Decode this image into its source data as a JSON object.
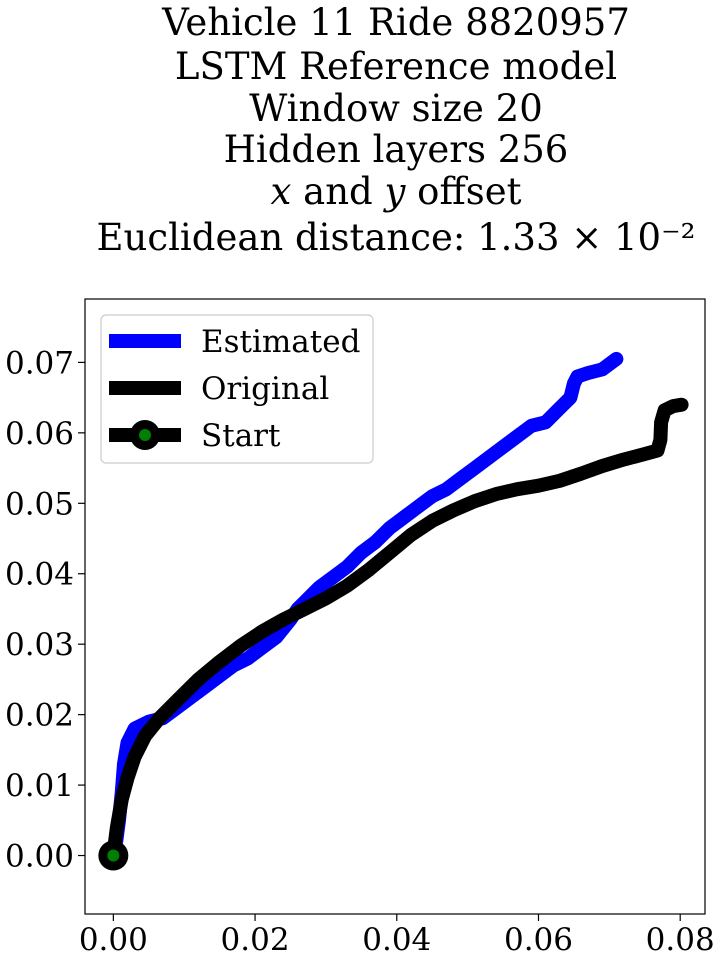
{
  "chart_data": {
    "type": "line",
    "title": [
      "Vehicle 11 Ride 8820957",
      "LSTM Reference model",
      "Window size 20",
      "Hidden layers 256",
      "x and y offset",
      "Euclidean distance: 1.33 × 10⁻²"
    ],
    "xlabel": "",
    "ylabel": "",
    "xlim": [
      -0.004,
      0.0835
    ],
    "ylim": [
      -0.0083,
      0.079
    ],
    "x_ticks": [
      "0.00",
      "0.02",
      "0.04",
      "0.06",
      "0.08"
    ],
    "x_tick_values": [
      0.0,
      0.02,
      0.04,
      0.06,
      0.08
    ],
    "y_ticks": [
      "0.00",
      "0.01",
      "0.02",
      "0.03",
      "0.04",
      "0.05",
      "0.06",
      "0.07"
    ],
    "y_tick_values": [
      0.0,
      0.01,
      0.02,
      0.03,
      0.04,
      0.05,
      0.06,
      0.07
    ],
    "grid": false,
    "legend_position": "top-left",
    "series": [
      {
        "name": "Estimated",
        "color": "#0000ff",
        "points": [
          [
            0.0,
            0.0
          ],
          [
            0.0004,
            0.002
          ],
          [
            0.0008,
            0.005
          ],
          [
            0.0012,
            0.009
          ],
          [
            0.0015,
            0.013
          ],
          [
            0.002,
            0.016
          ],
          [
            0.003,
            0.018
          ],
          [
            0.005,
            0.019
          ],
          [
            0.007,
            0.0195
          ],
          [
            0.009,
            0.021
          ],
          [
            0.011,
            0.0225
          ],
          [
            0.013,
            0.024
          ],
          [
            0.015,
            0.0255
          ],
          [
            0.017,
            0.027
          ],
          [
            0.019,
            0.028
          ],
          [
            0.021,
            0.0295
          ],
          [
            0.023,
            0.031
          ],
          [
            0.025,
            0.0335
          ],
          [
            0.026,
            0.035
          ],
          [
            0.027,
            0.036
          ],
          [
            0.029,
            0.038
          ],
          [
            0.031,
            0.0395
          ],
          [
            0.033,
            0.041
          ],
          [
            0.035,
            0.043
          ],
          [
            0.037,
            0.0445
          ],
          [
            0.039,
            0.0465
          ],
          [
            0.041,
            0.048
          ],
          [
            0.043,
            0.0495
          ],
          [
            0.045,
            0.051
          ],
          [
            0.047,
            0.052
          ],
          [
            0.049,
            0.0535
          ],
          [
            0.051,
            0.055
          ],
          [
            0.053,
            0.0565
          ],
          [
            0.055,
            0.058
          ],
          [
            0.057,
            0.0595
          ],
          [
            0.059,
            0.061
          ],
          [
            0.061,
            0.0615
          ],
          [
            0.063,
            0.0635
          ],
          [
            0.0645,
            0.065
          ],
          [
            0.065,
            0.067
          ],
          [
            0.0655,
            0.068
          ],
          [
            0.067,
            0.0685
          ],
          [
            0.069,
            0.069
          ],
          [
            0.071,
            0.0705
          ]
        ]
      },
      {
        "name": "Original",
        "color": "#000000",
        "points": [
          [
            0.0,
            0.0
          ],
          [
            0.0005,
            0.004
          ],
          [
            0.0012,
            0.008
          ],
          [
            0.002,
            0.011
          ],
          [
            0.003,
            0.014
          ],
          [
            0.0045,
            0.017
          ],
          [
            0.0065,
            0.0195
          ],
          [
            0.009,
            0.022
          ],
          [
            0.012,
            0.025
          ],
          [
            0.015,
            0.0275
          ],
          [
            0.018,
            0.0298
          ],
          [
            0.021,
            0.0318
          ],
          [
            0.024,
            0.0335
          ],
          [
            0.027,
            0.035
          ],
          [
            0.03,
            0.0365
          ],
          [
            0.033,
            0.0383
          ],
          [
            0.036,
            0.0405
          ],
          [
            0.039,
            0.043
          ],
          [
            0.042,
            0.0455
          ],
          [
            0.045,
            0.0475
          ],
          [
            0.048,
            0.049
          ],
          [
            0.051,
            0.0503
          ],
          [
            0.054,
            0.0513
          ],
          [
            0.057,
            0.052
          ],
          [
            0.06,
            0.0525
          ],
          [
            0.063,
            0.0532
          ],
          [
            0.066,
            0.0542
          ],
          [
            0.069,
            0.0553
          ],
          [
            0.072,
            0.0562
          ],
          [
            0.075,
            0.057
          ],
          [
            0.0768,
            0.0575
          ],
          [
            0.0772,
            0.059
          ],
          [
            0.0773,
            0.0615
          ],
          [
            0.0778,
            0.0632
          ],
          [
            0.079,
            0.0638
          ],
          [
            0.0802,
            0.064
          ]
        ]
      }
    ],
    "start": {
      "name": "Start",
      "x": 0.0,
      "y": 0.0,
      "outer_color": "#000000",
      "inner_color": "#008000"
    }
  }
}
